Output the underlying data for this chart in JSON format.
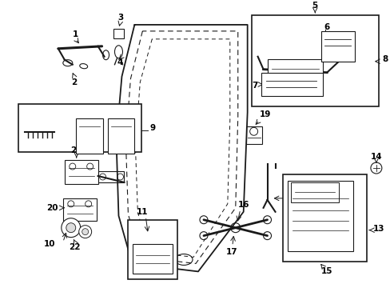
{
  "title": "",
  "bg_color": "#ffffff",
  "line_color": "#1a1a1a",
  "text_color": "#000000",
  "fig_width": 4.89,
  "fig_height": 3.6,
  "dpi": 100
}
